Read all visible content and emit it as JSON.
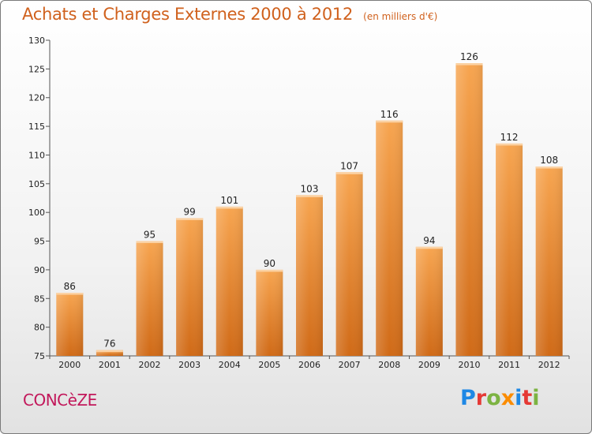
{
  "title": "Achats et Charges Externes 2000 à 2012",
  "unit_note": "(en milliers d'€)",
  "commune": "CONCèZE",
  "logo": {
    "letters": [
      "P",
      "r",
      "o",
      "x",
      "i",
      "t",
      "i"
    ],
    "colors": [
      "#1e88e5",
      "#e53935",
      "#7cb342",
      "#fb8c00",
      "#1e88e5",
      "#e53935",
      "#7cb342"
    ]
  },
  "chart_data": {
    "type": "bar",
    "title": "Achats et Charges Externes 2000 à 2012",
    "subtitle": "(en milliers d'€)",
    "categories": [
      "2000",
      "2001",
      "2002",
      "2003",
      "2004",
      "2005",
      "2006",
      "2007",
      "2008",
      "2009",
      "2010",
      "2011",
      "2012"
    ],
    "values": [
      86,
      76,
      95,
      99,
      101,
      90,
      103,
      107,
      116,
      94,
      126,
      112,
      108
    ],
    "ylim": [
      75,
      130
    ],
    "yticks": [
      75,
      80,
      85,
      90,
      95,
      100,
      105,
      110,
      115,
      120,
      125,
      130
    ],
    "grid": false,
    "legend": "none",
    "bar_color": "#f0883a"
  }
}
